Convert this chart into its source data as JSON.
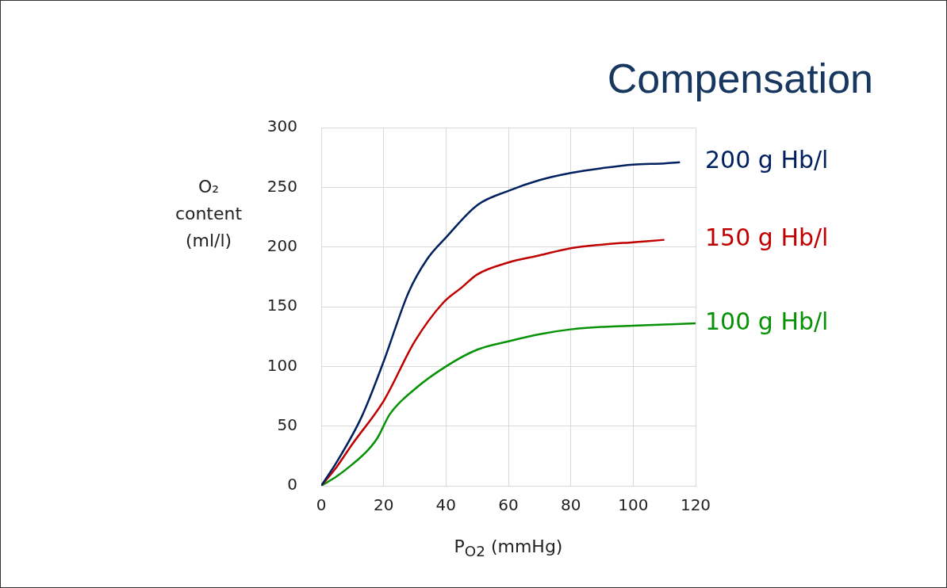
{
  "chart_data": {
    "type": "line",
    "title": "Compensation",
    "xlabel": "P$_{O2}$ (mmHg)",
    "ylabel": "O₂ content (ml/l)",
    "xlim": [
      0,
      120
    ],
    "xticks": [
      0,
      20,
      40,
      60,
      80,
      100,
      120
    ],
    "ylim": [
      0,
      300
    ],
    "yticks": [
      0,
      50,
      100,
      150,
      200,
      250,
      300
    ],
    "grid": true,
    "legend": false,
    "marker": "none",
    "line_style": "solid",
    "series": [
      {
        "name": "200 g Hb/l",
        "color": "#002060",
        "x": [
          0,
          5,
          13,
          20,
          28,
          34,
          40,
          50,
          60,
          70,
          80,
          90,
          100,
          110,
          115
        ],
        "values": [
          0,
          20,
          58,
          104,
          162,
          190,
          208,
          235,
          247,
          256,
          262,
          266,
          269,
          270,
          271
        ]
      },
      {
        "name": "150 g Hb/l",
        "color": "#c00000",
        "x": [
          0,
          5,
          10,
          20,
          30,
          39,
          45,
          50,
          60,
          70,
          80,
          90,
          100,
          110
        ],
        "values": [
          0,
          16,
          35,
          71,
          121,
          153,
          166,
          177,
          187,
          193,
          199,
          202,
          204,
          206
        ]
      },
      {
        "name": "100 g Hb/l",
        "color": "#079107",
        "x": [
          0,
          5,
          10,
          15,
          18,
          22,
          30,
          40,
          50,
          60,
          70,
          80,
          90,
          100,
          110,
          120
        ],
        "values": [
          0,
          8,
          18,
          30,
          40,
          60,
          81,
          100,
          114,
          121,
          127,
          131,
          133,
          134,
          135,
          136
        ]
      }
    ]
  }
}
